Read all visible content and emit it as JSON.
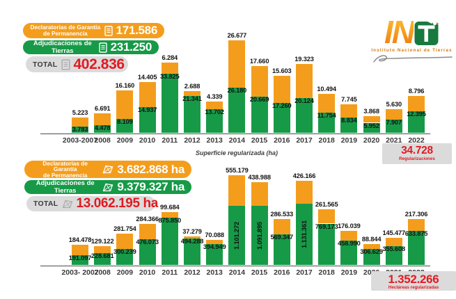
{
  "logo": {
    "wordmark": "IN",
    "emblem_letter": "T",
    "subtitle": "Instituto Nacional de Tierras"
  },
  "legend_top": {
    "declaratorias": {
      "label_line1": "Declaratorias de Garantía",
      "label_line2": "de Permanencia",
      "value": "171.586"
    },
    "adjudicaciones": {
      "label": "Adjudicaciones de Tierras",
      "value": "231.250"
    },
    "total": {
      "label": "TOTAL",
      "value": "402.836"
    }
  },
  "legend_bottom": {
    "declaratorias": {
      "label_line1": "Declaratorias de Garantía",
      "label_line2": "de Permanencia",
      "value": "3.682.868 ha"
    },
    "adjudicaciones": {
      "label": "Adjudicaciones de Tierras",
      "value": "9.379.327 ha"
    },
    "total": {
      "label": "TOTAL",
      "value": "13.062.195 ha"
    }
  },
  "between_charts_note": "Superficie regularizada (ha)",
  "summary_top": {
    "value": "34.728",
    "label": "Regularizaciones"
  },
  "summary_bottom": {
    "value": "1.352.266",
    "label": "Hectáreas regularizadas"
  },
  "colors": {
    "orange": "#F49D1D",
    "green": "#169A47",
    "red": "#E21A22",
    "gray_pill": "#DBDBDB",
    "label_text": "#141414"
  },
  "chart_data": [
    {
      "type": "bar",
      "stacked": true,
      "grid": false,
      "legend_position": "top-left",
      "ylim": [
        0,
        55000
      ],
      "categories": [
        "2003-2007",
        "2008",
        "2009",
        "2010",
        "2011",
        "2012",
        "2013",
        "2014",
        "2015",
        "2016",
        "2017",
        "2018",
        "2019",
        "2020",
        "2021",
        "2022"
      ],
      "series": [
        {
          "name": "Adjudicaciones de Tierras",
          "color": "#169A47",
          "values": [
            3783,
            4478,
            8109,
            14937,
            33825,
            21341,
            13702,
            26180,
            20669,
            17260,
            20124,
            11754,
            8834,
            5952,
            7907,
            12395
          ],
          "labels": [
            "3.783",
            "4.478",
            "8.109",
            "14.937",
            "33.825",
            "21.341",
            "13.702",
            "26.180",
            "20.669",
            "17.260",
            "20.124",
            "11.754",
            "8.834",
            "5.952",
            "7.907",
            "12.395"
          ]
        },
        {
          "name": "Declaratorias de Garantía de Permanencia",
          "color": "#F49D1D",
          "values": [
            5223,
            6691,
            16160,
            14405,
            6284,
            2688,
            4339,
            26677,
            17660,
            15603,
            19323,
            10494,
            7745,
            3868,
            5630,
            8796
          ],
          "labels": [
            "5.223",
            "6.691",
            "16.160",
            "14.405",
            "6.284",
            "2.688",
            "4.339",
            "26.677",
            "17.660",
            "15.603",
            "19.323",
            "10.494",
            "7.745",
            "3.868",
            "5.630",
            "8.796"
          ]
        }
      ],
      "totals": {
        "orange": 171586,
        "green": 231250,
        "all": 402836
      },
      "vertical_value_labels_years": []
    },
    {
      "type": "bar",
      "stacked": true,
      "grid": false,
      "legend_position": "top-left",
      "ylim": [
        0,
        1700000
      ],
      "unit": "ha",
      "categories": [
        "2003- 2007",
        "2008",
        "2009",
        "2010",
        "2011",
        "2012",
        "2013",
        "2014",
        "2015",
        "2016",
        "2017",
        "2018",
        "2019",
        "2020",
        "2021",
        "2022"
      ],
      "series": [
        {
          "name": "Adjudicaciones de Tierras",
          "color": "#169A47",
          "values": [
            191097,
            228681,
            300239,
            476073,
            875850,
            494288,
            394949,
            1101272,
            1091895,
            569347,
            1131361,
            769173,
            458990,
            306629,
            355608,
            633875
          ],
          "labels": [
            "191.097",
            "228.681",
            "300.239",
            "476.073",
            "875.850",
            "494.288",
            "394.949",
            "1.101.272",
            "1.091.895",
            "569.347",
            "1.131.361",
            "769.173",
            "458.990",
            "306.629",
            "355.608",
            "633.875"
          ]
        },
        {
          "name": "Declaratorias de Garantía de Permanencia",
          "color": "#F49D1D",
          "values": [
            184478,
            129122,
            281754,
            284366,
            99684,
            37279,
            70088,
            555179,
            438988,
            286533,
            426166,
            261565,
            176039,
            88844,
            145477,
            217306
          ],
          "labels": [
            "184.478",
            "129.122",
            "281.754",
            "284.366",
            "99.684",
            "37.279",
            "70.088",
            "555.179",
            "438.988",
            "286.533",
            "426.166",
            "261.565",
            "176.039",
            "88.844",
            "145.477",
            "217.306"
          ]
        }
      ],
      "totals": {
        "orange": 3682868,
        "green": 9379327,
        "all": 13062195
      },
      "vertical_value_labels_years": [
        "2014",
        "2015",
        "2017"
      ]
    }
  ]
}
